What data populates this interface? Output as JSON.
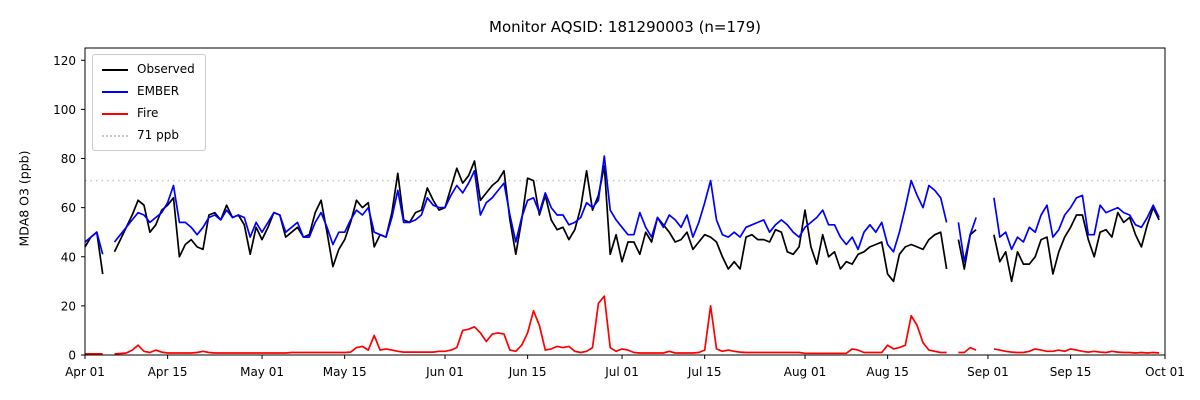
{
  "title": "Monitor AQSID: 181290003 (n=179)",
  "chart_data": {
    "type": "line",
    "title": "Monitor AQSID: 181290003 (n=179)",
    "xlabel": "",
    "ylabel": "MDA8 O3 (ppb)",
    "ylim": [
      0,
      125
    ],
    "y_ticks": [
      0,
      20,
      40,
      60,
      80,
      100,
      120
    ],
    "x_axis_days": 183,
    "x_start": "Apr 01",
    "x_end": "Oct 01",
    "x_ticks": [
      {
        "day": 0,
        "label": "Apr 01"
      },
      {
        "day": 14,
        "label": "Apr 15"
      },
      {
        "day": 30,
        "label": "May 01"
      },
      {
        "day": 44,
        "label": "May 15"
      },
      {
        "day": 61,
        "label": "Jun 01"
      },
      {
        "day": 75,
        "label": "Jun 15"
      },
      {
        "day": 91,
        "label": "Jul 01"
      },
      {
        "day": 105,
        "label": "Jul 15"
      },
      {
        "day": 122,
        "label": "Aug 01"
      },
      {
        "day": 136,
        "label": "Aug 15"
      },
      {
        "day": 153,
        "label": "Sep 01"
      },
      {
        "day": 167,
        "label": "Sep 15"
      },
      {
        "day": 183,
        "label": "Oct 01"
      }
    ],
    "threshold": {
      "value": 71,
      "label": "71 ppb",
      "color": "#c9c9c9",
      "style": "dotted"
    },
    "grid": false,
    "legend_position": "upper left",
    "legend": [
      {
        "label": "Observed",
        "color": "#000000",
        "style": "solid"
      },
      {
        "label": "EMBER",
        "color": "#0000ff",
        "style": "solid"
      },
      {
        "label": "Fire",
        "color": "#ff0000",
        "style": "solid"
      },
      {
        "label": "71 ppb",
        "color": "#c9c9c9",
        "style": "dotted"
      }
    ],
    "series": [
      {
        "name": "Observed",
        "color": "#000000",
        "values": [
          44,
          48,
          50,
          33,
          null,
          42,
          47,
          52,
          57,
          63,
          61,
          50,
          53,
          59,
          61,
          64,
          40,
          45,
          47,
          44,
          43,
          57,
          58,
          55,
          61,
          56,
          57,
          53,
          41,
          52,
          47,
          52,
          58,
          57,
          48,
          50,
          52,
          48,
          49,
          58,
          63,
          50,
          36,
          43,
          47,
          54,
          63,
          60,
          62,
          44,
          49,
          48,
          58,
          74,
          55,
          54,
          58,
          59,
          68,
          63,
          59,
          60,
          68,
          76,
          70,
          73,
          79,
          63,
          66,
          69,
          71,
          75,
          55,
          41,
          55,
          72,
          71,
          57,
          65,
          55,
          51,
          52,
          47,
          51,
          60,
          75,
          59,
          65,
          77,
          41,
          49,
          38,
          46,
          46,
          41,
          50,
          46,
          56,
          53,
          50,
          46,
          47,
          50,
          43,
          46,
          49,
          48,
          46,
          40,
          35,
          38,
          35,
          48,
          49,
          47,
          47,
          46,
          51,
          50,
          42,
          41,
          44,
          59,
          44,
          37,
          49,
          40,
          42,
          35,
          38,
          37,
          41,
          42,
          44,
          45,
          46,
          33,
          30,
          41,
          44,
          45,
          44,
          43,
          47,
          49,
          50,
          35,
          null,
          47,
          35,
          49,
          51,
          null,
          null,
          49,
          38,
          42,
          30,
          42,
          37,
          37,
          40,
          47,
          48,
          33,
          42,
          48,
          52,
          57,
          57,
          47,
          40,
          50,
          51,
          48,
          58,
          54,
          56,
          49,
          44,
          53,
          60,
          55
        ]
      },
      {
        "name": "EMBER",
        "color": "#0000ff",
        "values": [
          46,
          48,
          50,
          41,
          null,
          46,
          49,
          52,
          55,
          58,
          57,
          54,
          56,
          58,
          62,
          69,
          54,
          54,
          52,
          49,
          52,
          56,
          57,
          55,
          59,
          56,
          57,
          56,
          48,
          54,
          50,
          54,
          58,
          57,
          50,
          52,
          54,
          48,
          48,
          54,
          58,
          52,
          45,
          50,
          50,
          55,
          59,
          57,
          60,
          50,
          49,
          48,
          56,
          67,
          54,
          54,
          55,
          57,
          64,
          61,
          60,
          60,
          65,
          69,
          66,
          70,
          75,
          57,
          62,
          64,
          67,
          70,
          57,
          46,
          56,
          63,
          64,
          58,
          66,
          60,
          57,
          57,
          53,
          54,
          56,
          62,
          60,
          63,
          81,
          59,
          55,
          52,
          49,
          49,
          58,
          52,
          48,
          56,
          52,
          57,
          55,
          52,
          57,
          48,
          54,
          62,
          71,
          55,
          49,
          48,
          50,
          48,
          52,
          53,
          54,
          55,
          50,
          53,
          55,
          53,
          50,
          48,
          52,
          54,
          56,
          59,
          53,
          53,
          48,
          45,
          48,
          43,
          50,
          53,
          50,
          54,
          45,
          42,
          50,
          60,
          71,
          65,
          60,
          69,
          67,
          64,
          54,
          null,
          54,
          38,
          49,
          56,
          null,
          null,
          64,
          48,
          50,
          43,
          48,
          46,
          52,
          50,
          57,
          61,
          48,
          51,
          57,
          60,
          64,
          65,
          49,
          49,
          61,
          58,
          59,
          60,
          58,
          57,
          53,
          52,
          56,
          61,
          56
        ]
      },
      {
        "name": "Fire",
        "color": "#ff0000",
        "values": [
          0.5,
          0.5,
          0.5,
          0.5,
          null,
          0.5,
          0.6,
          0.8,
          2,
          4,
          1.5,
          1,
          2,
          1.2,
          0.8,
          0.8,
          0.8,
          0.8,
          0.8,
          1,
          1.5,
          1,
          0.8,
          0.8,
          0.8,
          0.8,
          0.8,
          0.8,
          0.8,
          0.8,
          0.8,
          0.8,
          0.8,
          0.8,
          0.8,
          1,
          1,
          1,
          1,
          1,
          1,
          1,
          1,
          1,
          1,
          1.2,
          3,
          3.5,
          2,
          8,
          2,
          2.5,
          2,
          1.5,
          1.2,
          1.2,
          1.2,
          1.2,
          1.2,
          1.2,
          1.5,
          1.5,
          2,
          3,
          10,
          10.5,
          11.5,
          9,
          5.5,
          8.5,
          9,
          8.5,
          2,
          1.5,
          4,
          9,
          18,
          12,
          2,
          2.5,
          3.5,
          3,
          3.5,
          1.5,
          1,
          1.5,
          3,
          21,
          24,
          3,
          1.5,
          2.5,
          2,
          1,
          0.8,
          0.8,
          0.8,
          0.8,
          0.8,
          1.5,
          0.8,
          0.8,
          0.8,
          0.8,
          1,
          2,
          20,
          2.5,
          1.5,
          2,
          1.5,
          1.2,
          1,
          1,
          1,
          1,
          1,
          1,
          1,
          1,
          1,
          1,
          0.7,
          0.7,
          0.7,
          0.7,
          0.7,
          0.7,
          0.7,
          0.7,
          2.5,
          2,
          1,
          1,
          1,
          1,
          4,
          2.5,
          3,
          4,
          16,
          12,
          5,
          2,
          1.5,
          1,
          1,
          null,
          1,
          1,
          3,
          2,
          null,
          null,
          2.5,
          2,
          1.5,
          1.2,
          1,
          1,
          1.5,
          2.5,
          2,
          1.5,
          1.5,
          2,
          1.5,
          2.5,
          2,
          1.5,
          1.2,
          1.5,
          1.2,
          1,
          1.5,
          1.2,
          1,
          1,
          0.8,
          1,
          0.8,
          1,
          0.8
        ]
      }
    ]
  }
}
